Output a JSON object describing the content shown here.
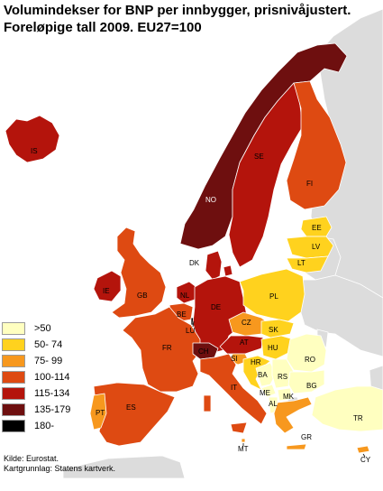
{
  "title": {
    "line1": "Volumindekser for BNP per innbygger, prisnivåjustert.",
    "line2": "Foreløpige tall 2009. EU27=100"
  },
  "legend": [
    {
      "label": ">50",
      "color": "#ffffc0"
    },
    {
      "label": "50-  74",
      "color": "#ffd21e"
    },
    {
      "label": "75-  99",
      "color": "#f7981e"
    },
    {
      "label": "100-114",
      "color": "#de4a12"
    },
    {
      "label": "115-134",
      "color": "#b4140c"
    },
    {
      "label": "135-179",
      "color": "#6e0f0f"
    },
    {
      "label": "180-",
      "color": "#000000"
    }
  ],
  "countries": [
    {
      "code": "IS",
      "class": "115-134"
    },
    {
      "code": "NO",
      "class": "135-179"
    },
    {
      "code": "SE",
      "class": "115-134"
    },
    {
      "code": "FI",
      "class": "100-114"
    },
    {
      "code": "DK",
      "class": "115-134"
    },
    {
      "code": "EE",
      "class": "50-  74"
    },
    {
      "code": "LV",
      "class": "50-  74"
    },
    {
      "code": "LT",
      "class": "50-  74"
    },
    {
      "code": "PL",
      "class": "50-  74"
    },
    {
      "code": "IE",
      "class": "115-134"
    },
    {
      "code": "GB",
      "class": "100-114"
    },
    {
      "code": "NL",
      "class": "115-134"
    },
    {
      "code": "BE",
      "class": "100-114"
    },
    {
      "code": "LU",
      "class": "180-"
    },
    {
      "code": "DE",
      "class": "115-134"
    },
    {
      "code": "CZ",
      "class": "75-  99"
    },
    {
      "code": "SK",
      "class": "50-  74"
    },
    {
      "code": "FR",
      "class": "100-114"
    },
    {
      "code": "CH",
      "class": "135-179"
    },
    {
      "code": "AT",
      "class": "115-134"
    },
    {
      "code": "HU",
      "class": "50-  74"
    },
    {
      "code": "SI",
      "class": "75-  99"
    },
    {
      "code": "HR",
      "class": "50-  74"
    },
    {
      "code": "RO",
      "class": ">50"
    },
    {
      "code": "BA",
      "class": ">50"
    },
    {
      "code": "RS",
      "class": ">50"
    },
    {
      "code": "BG",
      "class": ">50"
    },
    {
      "code": "ME",
      "class": ">50"
    },
    {
      "code": "MK",
      "class": ">50"
    },
    {
      "code": "AL",
      "class": ">50"
    },
    {
      "code": "IT",
      "class": "100-114"
    },
    {
      "code": "ES",
      "class": "100-114"
    },
    {
      "code": "PT",
      "class": "75-  99"
    },
    {
      "code": "GR",
      "class": "75-  99"
    },
    {
      "code": "TR",
      "class": ">50"
    },
    {
      "code": "CY",
      "class": "75-  99"
    },
    {
      "code": "MT",
      "class": "75-  99"
    }
  ],
  "source": {
    "line1": "Kilde: Eurostat.",
    "line2": "Kartgrunnlag: Statens kartverk."
  }
}
